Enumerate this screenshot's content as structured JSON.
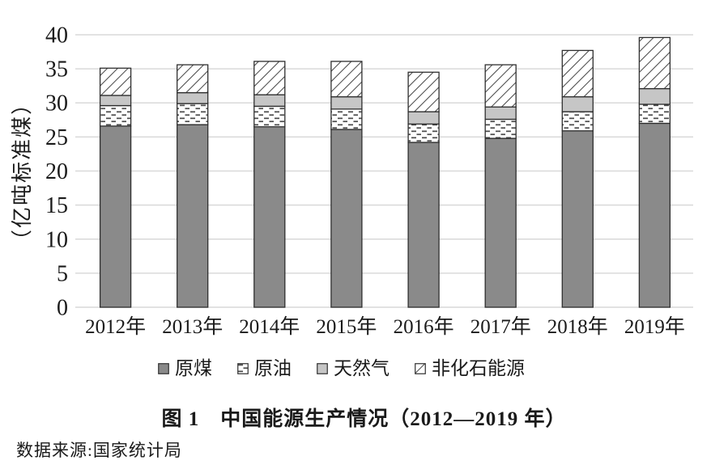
{
  "figure": {
    "caption": "图 1　中国能源生产情况（2012—2019 年）",
    "source": "数据来源:国家统计局"
  },
  "colors": {
    "coal_fill": "#8a8a8a",
    "gas_fill": "#c6c6c6",
    "pattern_ink": "#4a4a4a",
    "segment_border": "#2f2f2f",
    "gridline": "#d9d9d9",
    "text": "#1a1a1a"
  },
  "chart_data": {
    "type": "bar",
    "stacked": true,
    "title": "图 1　中国能源生产情况（2012—2019 年）",
    "xlabel": "",
    "ylabel": "（亿吨标准煤）",
    "units": "亿吨标准煤",
    "ylim": [
      0,
      40
    ],
    "ytick_step": 5,
    "grid": "horizontal-only",
    "legend_position": "bottom",
    "categories": [
      "2012年",
      "2013年",
      "2014年",
      "2015年",
      "2016年",
      "2017年",
      "2018年",
      "2019年"
    ],
    "series": [
      {
        "name": "原煤",
        "fill": "#8a8a8a",
        "pattern": null,
        "values": [
          26.6,
          26.8,
          26.5,
          26.1,
          24.2,
          24.8,
          25.9,
          27.0
        ]
      },
      {
        "name": "原油",
        "fill": "#ffffff",
        "pattern": "horizontal-dashes",
        "values": [
          3.0,
          3.1,
          3.0,
          3.0,
          2.7,
          2.8,
          2.8,
          2.8
        ]
      },
      {
        "name": "天然气",
        "fill": "#c6c6c6",
        "pattern": null,
        "values": [
          1.5,
          1.6,
          1.7,
          1.8,
          1.8,
          1.8,
          2.2,
          2.3
        ]
      },
      {
        "name": "非化石能源",
        "fill": "#ffffff",
        "pattern": "diagonal-hatch",
        "values": [
          4.0,
          4.1,
          4.9,
          5.2,
          5.8,
          6.2,
          6.8,
          7.5
        ]
      }
    ],
    "stack_totals_approx": [
      35.1,
      35.6,
      36.1,
      36.1,
      34.5,
      35.6,
      37.7,
      39.6
    ]
  }
}
